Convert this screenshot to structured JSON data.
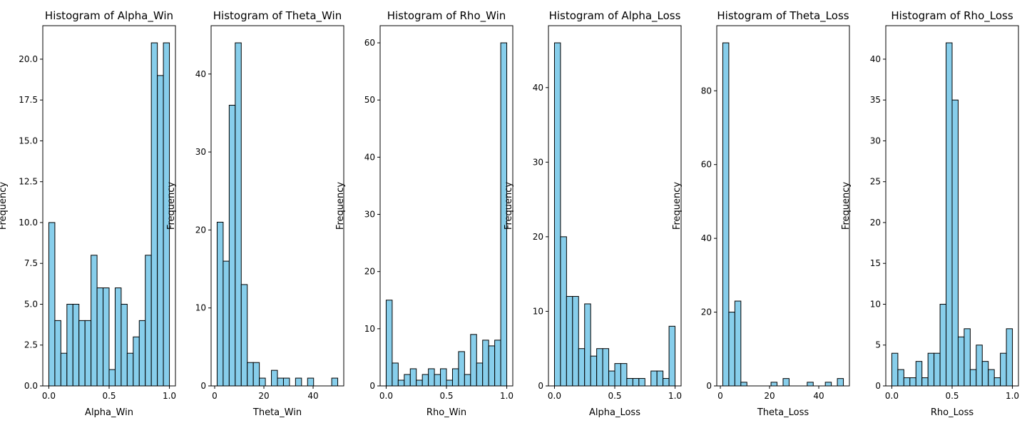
{
  "chart_data": [
    {
      "type": "bar",
      "title": "Histogram of Alpha_Win",
      "xlabel": "Alpha_Win",
      "ylabel": "Frequency",
      "x_range": [
        0,
        1
      ],
      "xlim": [
        -0.05,
        1.05
      ],
      "ylim": [
        0,
        22.05
      ],
      "xticks": [
        0.0,
        0.5,
        1.0
      ],
      "xtick_labels": [
        "0.0",
        "0.5",
        "1.0"
      ],
      "yticks": [
        0,
        2.5,
        5.0,
        7.5,
        10.0,
        12.5,
        15.0,
        17.5,
        20.0
      ],
      "ytick_labels": [
        "0.0",
        "2.5",
        "5.0",
        "7.5",
        "10.0",
        "12.5",
        "15.0",
        "17.5",
        "20.0"
      ],
      "values": [
        10,
        4,
        2,
        5,
        5,
        4,
        4,
        8,
        6,
        6,
        1,
        6,
        5,
        2,
        3,
        4,
        8,
        21,
        19,
        21
      ]
    },
    {
      "type": "bar",
      "title": "Histogram of Theta_Win",
      "xlabel": "Theta_Win",
      "ylabel": "Frequency",
      "x_range": [
        1,
        50
      ],
      "xlim": [
        -1.45,
        52.45
      ],
      "ylim": [
        0,
        46.2
      ],
      "xticks": [
        0,
        20,
        40
      ],
      "xtick_labels": [
        "0",
        "20",
        "40"
      ],
      "yticks": [
        0,
        10,
        20,
        30,
        40
      ],
      "ytick_labels": [
        "0",
        "10",
        "20",
        "30",
        "40"
      ],
      "values": [
        21,
        16,
        36,
        44,
        13,
        3,
        3,
        1,
        0,
        2,
        1,
        1,
        0,
        1,
        0,
        1,
        0,
        0,
        0,
        1
      ]
    },
    {
      "type": "bar",
      "title": "Histogram of Rho_Win",
      "xlabel": "Rho_Win",
      "ylabel": "Frequency",
      "x_range": [
        0,
        1
      ],
      "xlim": [
        -0.05,
        1.05
      ],
      "ylim": [
        0,
        63
      ],
      "xticks": [
        0.0,
        0.5,
        1.0
      ],
      "xtick_labels": [
        "0.0",
        "0.5",
        "1.0"
      ],
      "yticks": [
        0,
        10,
        20,
        30,
        40,
        50,
        60
      ],
      "ytick_labels": [
        "0",
        "10",
        "20",
        "30",
        "40",
        "50",
        "60"
      ],
      "values": [
        15,
        4,
        1,
        2,
        3,
        1,
        2,
        3,
        2,
        3,
        1,
        3,
        6,
        2,
        9,
        4,
        8,
        7,
        8,
        60
      ]
    },
    {
      "type": "bar",
      "title": "Histogram of Alpha_Loss",
      "xlabel": "Alpha_Loss",
      "ylabel": "Frequency",
      "x_range": [
        0,
        1
      ],
      "xlim": [
        -0.05,
        1.05
      ],
      "ylim": [
        0,
        48.3
      ],
      "xticks": [
        0.0,
        0.5,
        1.0
      ],
      "xtick_labels": [
        "0.0",
        "0.5",
        "1.0"
      ],
      "yticks": [
        0,
        10,
        20,
        30,
        40
      ],
      "ytick_labels": [
        "0",
        "10",
        "20",
        "30",
        "40"
      ],
      "values": [
        46,
        20,
        12,
        12,
        5,
        11,
        4,
        5,
        5,
        2,
        3,
        3,
        1,
        1,
        1,
        0,
        2,
        2,
        1,
        8
      ]
    },
    {
      "type": "bar",
      "title": "Histogram of Theta_Loss",
      "xlabel": "Theta_Loss",
      "ylabel": "Frequency",
      "x_range": [
        1,
        50
      ],
      "xlim": [
        -1.45,
        52.45
      ],
      "ylim": [
        0,
        97.65
      ],
      "xticks": [
        0,
        20,
        40
      ],
      "xtick_labels": [
        "0",
        "20",
        "40"
      ],
      "yticks": [
        0,
        20,
        40,
        60,
        80
      ],
      "ytick_labels": [
        "0",
        "20",
        "40",
        "60",
        "80"
      ],
      "values": [
        93,
        20,
        23,
        1,
        0,
        0,
        0,
        0,
        1,
        0,
        2,
        0,
        0,
        0,
        1,
        0,
        0,
        1,
        0,
        2
      ]
    },
    {
      "type": "bar",
      "title": "Histogram of Rho_Loss",
      "xlabel": "Rho_Loss",
      "ylabel": "Frequency",
      "x_range": [
        0,
        1
      ],
      "xlim": [
        -0.05,
        1.05
      ],
      "ylim": [
        0,
        44.1
      ],
      "xticks": [
        0.0,
        0.5,
        1.0
      ],
      "xtick_labels": [
        "0.0",
        "0.5",
        "1.0"
      ],
      "yticks": [
        0,
        5,
        10,
        15,
        20,
        25,
        30,
        35,
        40
      ],
      "ytick_labels": [
        "0",
        "5",
        "10",
        "15",
        "20",
        "25",
        "30",
        "35",
        "40"
      ],
      "values": [
        4,
        2,
        1,
        1,
        3,
        1,
        4,
        4,
        10,
        42,
        35,
        6,
        7,
        2,
        5,
        3,
        2,
        1,
        4,
        7
      ]
    }
  ],
  "colors": {
    "bar_fill": "#87ceeb",
    "bar_edge": "#000000",
    "axes": "#000000",
    "background": "#ffffff"
  }
}
